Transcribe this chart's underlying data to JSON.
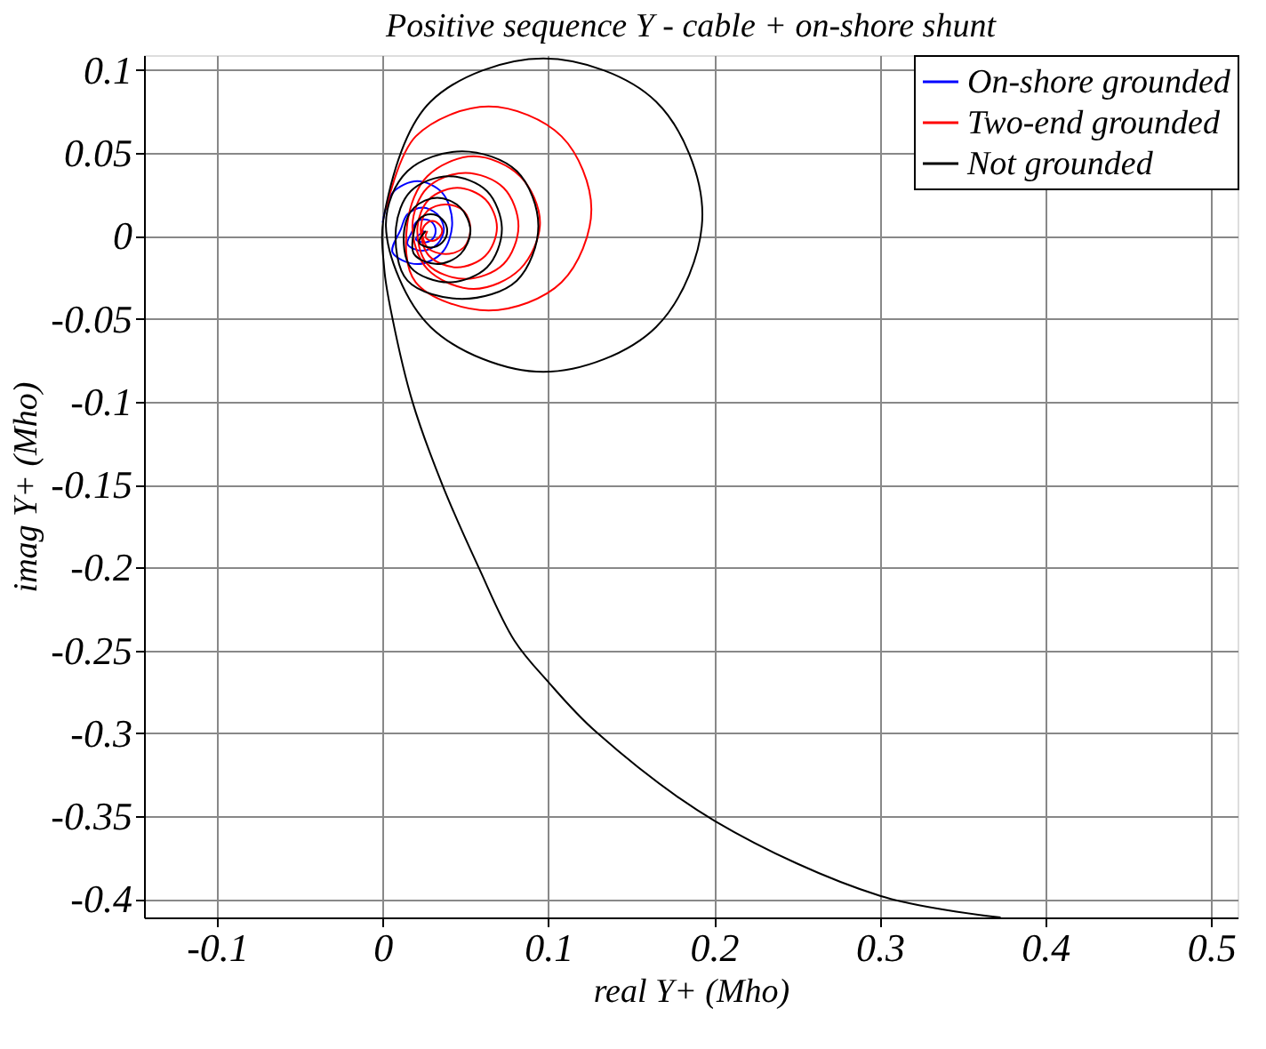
{
  "chart_data": {
    "type": "line",
    "title": "Positive sequence Y - cable + on-shore shunt",
    "xlabel": "real Y+ (Mho)",
    "ylabel": "imag Y+ (Mho)",
    "xlim": [
      -0.144,
      0.516
    ],
    "ylim": [
      -0.411,
      0.109
    ],
    "xticks": [
      -0.1,
      0,
      0.1,
      0.2,
      0.3,
      0.4,
      0.5
    ],
    "yticks": [
      -0.4,
      -0.35,
      -0.3,
      -0.25,
      -0.2,
      -0.15,
      -0.1,
      -0.05,
      0,
      0.05,
      0.1
    ],
    "grid": true,
    "legend": "top right",
    "marker": "none",
    "line_style": "solid",
    "series": [
      {
        "name": "On-shore grounded",
        "color": "#0000ff",
        "x": [
          0.0,
          0.006,
          0.021,
          0.036,
          0.042,
          0.036,
          0.021,
          0.006,
          0.011,
          0.015,
          0.024,
          0.033,
          0.037,
          0.033,
          0.024,
          0.015,
          0.018,
          0.02,
          0.025,
          0.03,
          0.032,
          0.03,
          0.025,
          0.02,
          0.025
        ],
        "values": [
          0.008,
          0.026,
          0.033,
          0.026,
          0.008,
          -0.01,
          -0.017,
          -0.01,
          0.004,
          0.013,
          0.017,
          0.013,
          0.004,
          -0.005,
          -0.009,
          -0.005,
          0.003,
          0.008,
          0.01,
          0.008,
          0.003,
          -0.002,
          -0.004,
          -0.002,
          0.003
        ]
      },
      {
        "name": "Two-end grounded",
        "color": "#ff0000",
        "x": [
          0.002,
          0.02,
          0.064,
          0.108,
          0.126,
          0.108,
          0.064,
          0.02,
          0.015,
          0.027,
          0.055,
          0.083,
          0.095,
          0.083,
          0.055,
          0.027,
          0.018,
          0.027,
          0.05,
          0.073,
          0.082,
          0.073,
          0.05,
          0.027,
          0.021,
          0.028,
          0.045,
          0.062,
          0.069,
          0.062,
          0.045,
          0.028,
          0.023,
          0.027,
          0.038,
          0.049,
          0.053,
          0.049,
          0.038,
          0.027,
          0.024,
          0.026,
          0.03,
          0.034,
          0.036,
          0.034,
          0.03,
          0.026,
          0.027
        ],
        "values": [
          0.016,
          0.06,
          0.078,
          0.06,
          0.016,
          -0.028,
          -0.045,
          -0.028,
          0.008,
          0.036,
          0.048,
          0.036,
          0.008,
          -0.02,
          -0.032,
          -0.02,
          0.006,
          0.029,
          0.038,
          0.029,
          0.006,
          -0.017,
          -0.026,
          -0.017,
          0.005,
          0.022,
          0.029,
          0.022,
          0.005,
          -0.012,
          -0.019,
          -0.012,
          0.004,
          0.015,
          0.019,
          0.015,
          0.004,
          -0.007,
          -0.011,
          -0.007,
          0.003,
          0.007,
          0.009,
          0.007,
          0.003,
          -0.001,
          -0.003,
          -0.001,
          0.003
        ]
      },
      {
        "name": "Not grounded",
        "color": "#000000",
        "x": [
          0.373,
          0.3003,
          0.2008,
          0.1287,
          0.1,
          0.0795,
          0.058,
          0.036,
          0.018,
          0.006,
          0.001,
          0.001,
          0.029,
          0.097,
          0.165,
          0.193,
          0.165,
          0.097,
          0.029,
          0.002,
          0.015,
          0.048,
          0.081,
          0.094,
          0.081,
          0.048,
          0.015,
          0.008,
          0.017,
          0.04,
          0.063,
          0.072,
          0.063,
          0.04,
          0.017,
          0.013,
          0.019,
          0.033,
          0.047,
          0.053,
          0.047,
          0.033,
          0.019,
          0.019,
          0.022,
          0.029,
          0.036,
          0.039,
          0.036,
          0.029,
          0.022,
          0.026
        ],
        "values": [
          -0.411,
          -0.398,
          -0.353,
          -0.299,
          -0.269,
          -0.244,
          -0.2,
          -0.15,
          -0.1,
          -0.05,
          -0.02,
          0.013,
          0.081,
          0.107,
          0.081,
          0.013,
          -0.055,
          -0.082,
          -0.055,
          0.006,
          0.039,
          0.051,
          0.039,
          0.006,
          -0.027,
          -0.038,
          -0.027,
          0.004,
          0.027,
          0.036,
          0.027,
          0.004,
          -0.019,
          -0.028,
          -0.019,
          0.003,
          0.017,
          0.023,
          0.017,
          0.003,
          -0.011,
          -0.017,
          -0.011,
          0.003,
          0.01,
          0.013,
          0.01,
          0.003,
          -0.004,
          -0.007,
          -0.004,
          0.003
        ]
      }
    ]
  }
}
